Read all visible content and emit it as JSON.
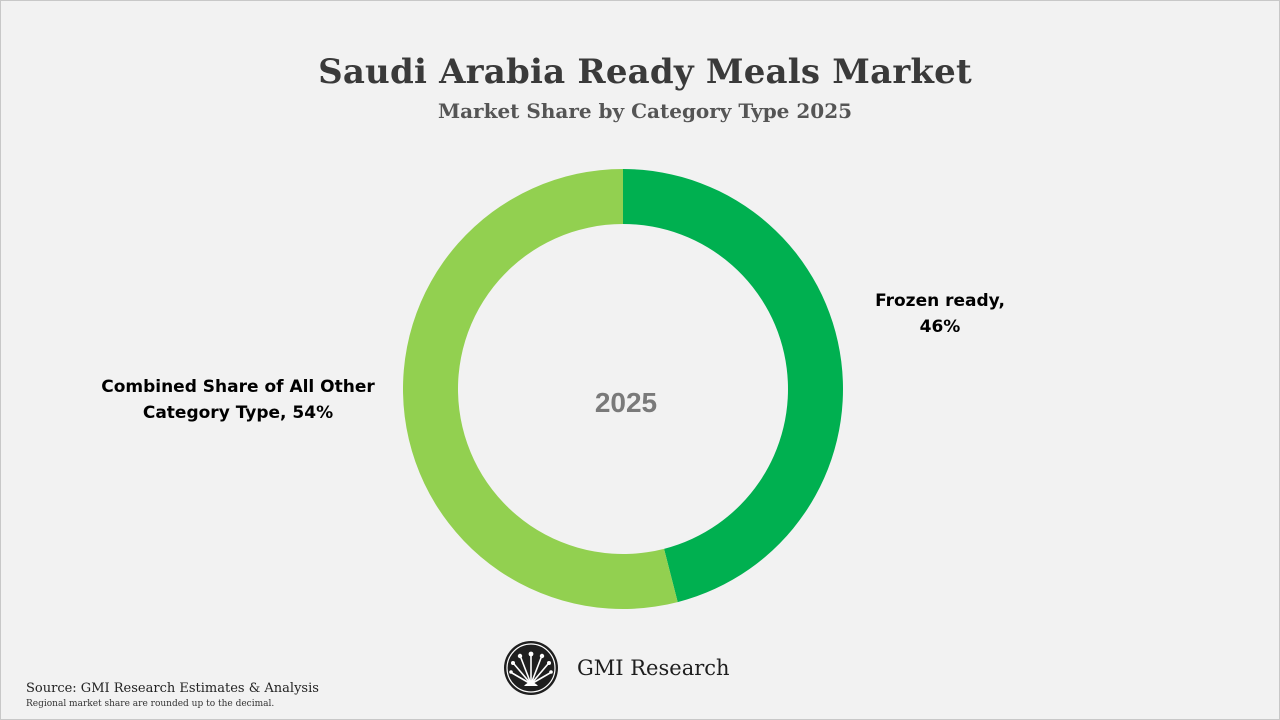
{
  "header": {
    "title": "Saudi Arabia Ready Meals Market",
    "subtitle": "Market Share by Category Type 2025"
  },
  "chart_data": {
    "type": "pie",
    "variant": "donut",
    "title": "Saudi Arabia Ready Meals Market",
    "subtitle": "Market Share by Category Type 2025",
    "center_label": "2025",
    "slices": [
      {
        "label_line1": "Frozen ready,",
        "label_line2": "46%",
        "value": 46,
        "color": "#00b050"
      },
      {
        "label_line1": "Combined Share of All Other",
        "label_line2": "Category Type, 54%",
        "value": 54,
        "color": "#92d050"
      }
    ],
    "legend": "none",
    "start_angle": "12 o'clock, clockwise"
  },
  "brand": {
    "logo_icon": "gmi-peacock-logo-icon",
    "name": "GMI Research"
  },
  "footer": {
    "source": "Source: GMI Research Estimates & Analysis",
    "note": "Regional market share are rounded up to the decimal."
  }
}
